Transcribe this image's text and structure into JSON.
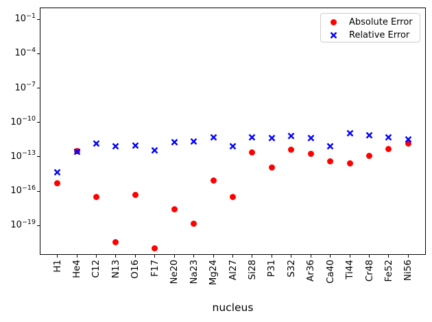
{
  "figure": {
    "background": "#ffffff"
  },
  "legend": {
    "items": [
      {
        "label": "Absolute Error",
        "marker": "circle",
        "color": "#ff0000"
      },
      {
        "label": "Relative Error",
        "marker": "x",
        "color": "#0000ff"
      }
    ],
    "position": "upper right"
  },
  "chart_data": {
    "type": "scatter",
    "title": "",
    "xlabel": "nucleus",
    "ylabel": "",
    "yscale": "log",
    "ylim": [
      2.8e-22,
      1.07
    ],
    "ytick_exponents": [
      -1,
      -4,
      -7,
      -10,
      -13,
      -16,
      -19
    ],
    "grid": false,
    "legend_position": "upper right",
    "categories": [
      "H1",
      "He4",
      "C12",
      "N13",
      "O16",
      "F17",
      "Ne20",
      "Na23",
      "Mg24",
      "Al27",
      "Si28",
      "P31",
      "S32",
      "Ar36",
      "Ca40",
      "Ti44",
      "Cr48",
      "Fe52",
      "Ni56"
    ],
    "series": [
      {
        "name": "Absolute Error",
        "marker": "circle",
        "color": "#ff0000",
        "values": [
          5e-16,
          3e-13,
          3e-17,
          3.5e-21,
          5e-17,
          1e-21,
          2.5e-18,
          1.5e-19,
          9e-16,
          3e-17,
          2.5e-13,
          1.1e-14,
          4.5e-13,
          1.8e-13,
          4e-14,
          2.8e-14,
          1.2e-13,
          5e-13,
          1.5e-12
        ]
      },
      {
        "name": "Relative Error",
        "marker": "x",
        "color": "#0000ff",
        "values": [
          8e-15,
          5e-13,
          2.6e-12,
          1.4e-12,
          1.6e-12,
          6e-13,
          3.5e-12,
          4e-12,
          9e-12,
          1.5e-12,
          9e-12,
          7.5e-12,
          1.2e-11,
          7.5e-12,
          1.5e-12,
          1.9e-11,
          1.4e-11,
          9e-12,
          6e-12
        ]
      }
    ]
  }
}
